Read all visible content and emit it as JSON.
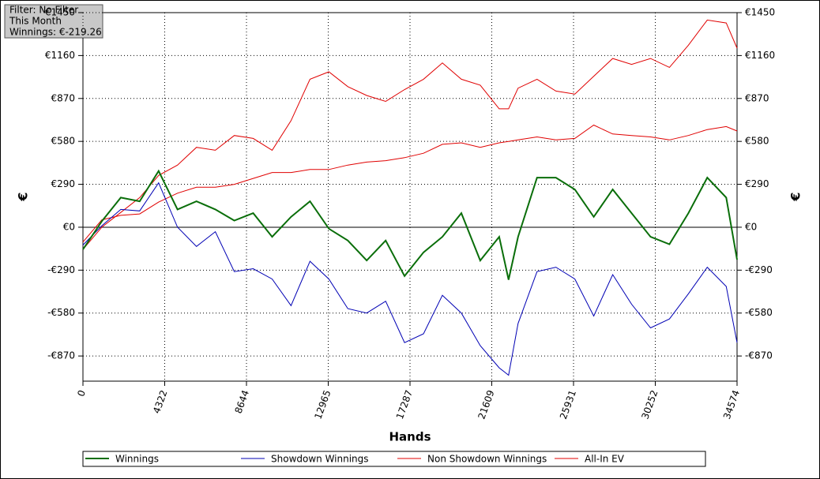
{
  "chart_data": {
    "type": "line",
    "info": [
      "Filter: No Filter",
      "This Month",
      "Winnings: €-219.26"
    ],
    "xlabel": "Hands",
    "ylabel": "€",
    "xlim": [
      0,
      34574
    ],
    "xticks": [
      0,
      4322,
      8644,
      12965,
      17287,
      21609,
      25931,
      30252,
      34574
    ],
    "ylim": [
      -1040,
      1450
    ],
    "yticks": [
      {
        "value": -870,
        "label": "-€870"
      },
      {
        "value": -580,
        "label": "-€580"
      },
      {
        "value": -290,
        "label": "-€290"
      },
      {
        "value": 0,
        "label": "€0"
      },
      {
        "value": 290,
        "label": "€290"
      },
      {
        "value": 580,
        "label": "€580"
      },
      {
        "value": 870,
        "label": "€870"
      },
      {
        "value": 1160,
        "label": "€1160"
      },
      {
        "value": 1450,
        "label": "€1450"
      }
    ],
    "grid": true,
    "x": [
      0,
      1000,
      2000,
      3000,
      4000,
      5000,
      6000,
      7000,
      8000,
      9000,
      10000,
      11000,
      12000,
      13000,
      14000,
      15000,
      16000,
      17000,
      18000,
      19000,
      20000,
      21000,
      22000,
      22500,
      23000,
      24000,
      25000,
      26000,
      27000,
      28000,
      29000,
      30000,
      31000,
      32000,
      33000,
      34000,
      34574
    ],
    "series": [
      {
        "name": "Winnings",
        "color": "#0a6e0a",
        "width": 2,
        "values": [
          -150,
          40,
          200,
          175,
          380,
          120,
          175,
          120,
          45,
          95,
          -65,
          70,
          175,
          -10,
          -90,
          -225,
          -90,
          -330,
          -170,
          -65,
          95,
          -225,
          -65,
          -355,
          -65,
          335,
          335,
          255,
          70,
          255,
          95,
          -65,
          -115,
          95,
          335,
          200,
          -219
        ]
      },
      {
        "name": "Showdown Winnings",
        "color": "#0000b4",
        "width": 1,
        "values": [
          -120,
          10,
          120,
          110,
          300,
          0,
          -130,
          -30,
          -300,
          -280,
          -350,
          -530,
          -230,
          -350,
          -550,
          -580,
          -500,
          -780,
          -720,
          -460,
          -580,
          -800,
          -950,
          -1000,
          -650,
          -300,
          -270,
          -350,
          -600,
          -320,
          -520,
          -680,
          -620,
          -450,
          -270,
          -400,
          -780
        ]
      },
      {
        "name": "Non Showdown Winnings",
        "color": "#e00000",
        "width": 1,
        "values": [
          -100,
          50,
          80,
          90,
          170,
          230,
          270,
          270,
          290,
          330,
          370,
          370,
          390,
          390,
          420,
          440,
          450,
          470,
          500,
          560,
          570,
          540,
          570,
          580,
          590,
          610,
          590,
          600,
          690,
          630,
          620,
          610,
          590,
          620,
          660,
          680,
          650
        ]
      },
      {
        "name": "All-In EV",
        "color": "#e00000",
        "width": 1,
        "values": [
          -150,
          0,
          100,
          200,
          350,
          420,
          540,
          520,
          620,
          600,
          520,
          720,
          1000,
          1050,
          950,
          890,
          850,
          930,
          1000,
          1110,
          1000,
          960,
          800,
          800,
          940,
          1000,
          920,
          900,
          1020,
          1140,
          1100,
          1140,
          1080,
          1230,
          1400,
          1380,
          1210
        ]
      }
    ]
  }
}
